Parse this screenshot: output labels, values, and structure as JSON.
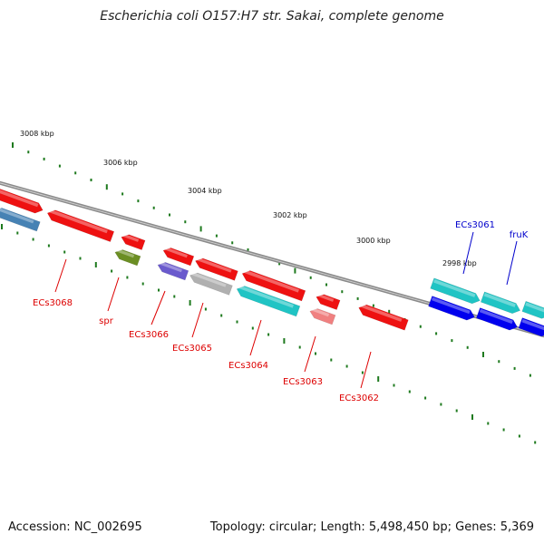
{
  "title": "Escherichia coli O157:H7 str. Sakai, complete genome",
  "footer": {
    "accession": "Accession: NC_002695",
    "summary": "Topology: circular; Length: 5,498,450 bp; Genes: 5,369"
  },
  "colors": {
    "background": "#ffffff",
    "backbone": "#8a8a8a",
    "tick": "#1e7a1e",
    "label_red": "#dd0000",
    "label_blue": "#0000cc"
  },
  "scale_labels": [
    "3008 kbp",
    "3006 kbp",
    "3004 kbp",
    "3002 kbp",
    "3000 kbp",
    "2998 kbp"
  ],
  "genes": [
    {
      "name": "",
      "color": "#ee1111",
      "strand": "+",
      "label_color": "#dd0000"
    },
    {
      "name": "",
      "color": "#4682b4",
      "strand": "-",
      "label_color": "#dd0000"
    },
    {
      "name": "ECs3068",
      "color": "#ee1111",
      "strand": "-",
      "label_color": "#dd0000"
    },
    {
      "name": "",
      "color": "#ee1111",
      "strand": "-",
      "label_color": "#dd0000"
    },
    {
      "name": "spr",
      "color": "#6b8e23",
      "strand": "-",
      "label_color": "#dd0000"
    },
    {
      "name": "",
      "color": "#ee1111",
      "strand": "-",
      "label_color": "#dd0000"
    },
    {
      "name": "ECs3066",
      "color": "#6a5acd",
      "strand": "-",
      "label_color": "#dd0000"
    },
    {
      "name": "",
      "color": "#ee1111",
      "strand": "-",
      "label_color": "#dd0000"
    },
    {
      "name": "ECs3065",
      "color": "#b0b0b0",
      "strand": "-",
      "label_color": "#dd0000"
    },
    {
      "name": "",
      "color": "#ee1111",
      "strand": "-",
      "label_color": "#dd0000"
    },
    {
      "name": "ECs3064",
      "color": "#20c4c4",
      "strand": "-",
      "label_color": "#dd0000"
    },
    {
      "name": "",
      "color": "#ee1111",
      "strand": "-",
      "label_color": "#dd0000"
    },
    {
      "name": "ECs3063",
      "color": "#f08080",
      "strand": "-",
      "label_color": "#dd0000"
    },
    {
      "name": "ECs3062",
      "color": "#ee1111",
      "strand": "-",
      "label_color": "#dd0000"
    },
    {
      "name": "ECs3061",
      "color": "#20c4c4",
      "strand": "+",
      "label_color": "#0000cc"
    },
    {
      "name": "fruK",
      "color": "#20c4c4",
      "strand": "+",
      "label_color": "#0000cc"
    },
    {
      "name": "",
      "color": "#20c4c4",
      "strand": "+",
      "label_color": "#0000cc"
    },
    {
      "name": "",
      "color": "#0000ee",
      "strand": "+",
      "label_color": "#0000cc"
    },
    {
      "name": "",
      "color": "#0000ee",
      "strand": "+",
      "label_color": "#0000cc"
    },
    {
      "name": "",
      "color": "#0000ee",
      "strand": "+",
      "label_color": "#0000cc"
    }
  ]
}
